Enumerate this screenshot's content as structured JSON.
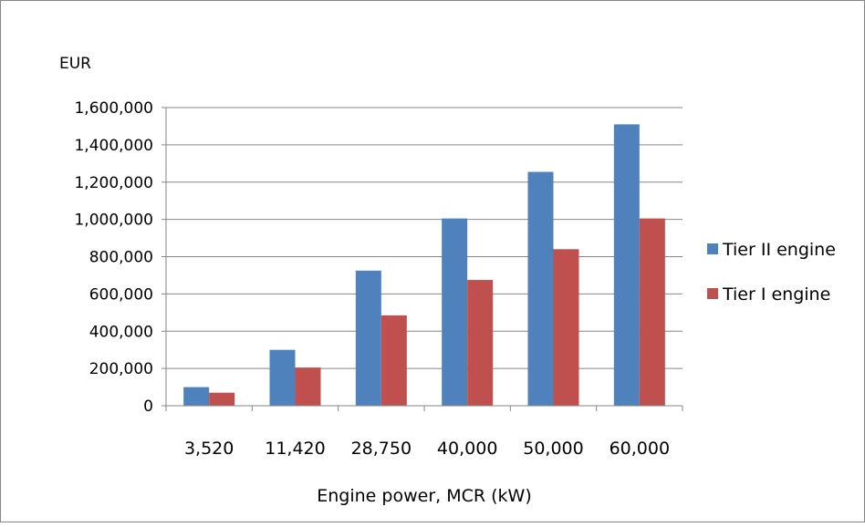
{
  "chart_data": {
    "type": "bar",
    "title": "",
    "xlabel": "Engine power, MCR (kW)",
    "ylabel": "EUR",
    "categories": [
      "3,520",
      "11,420",
      "28,750",
      "40,000",
      "50,000",
      "60,000"
    ],
    "series": [
      {
        "name": "Tier II engine",
        "color": "#4F81BD",
        "values": [
          100000,
          300000,
          725000,
          1005000,
          1255000,
          1510000
        ]
      },
      {
        "name": "Tier I engine",
        "color": "#C0504D",
        "values": [
          70000,
          205000,
          485000,
          675000,
          840000,
          1005000
        ]
      }
    ],
    "ylim": [
      0,
      1600000
    ],
    "yticks": [
      0,
      200000,
      400000,
      600000,
      800000,
      1000000,
      1200000,
      1400000,
      1600000
    ],
    "ytick_labels": [
      "0",
      "200,000",
      "400,000",
      "600,000",
      "800,000",
      "1,000,000",
      "1,200,000",
      "1,400,000",
      "1,600,000"
    ],
    "grid": true,
    "gridline_color": "#868686",
    "legend_position": "right"
  }
}
